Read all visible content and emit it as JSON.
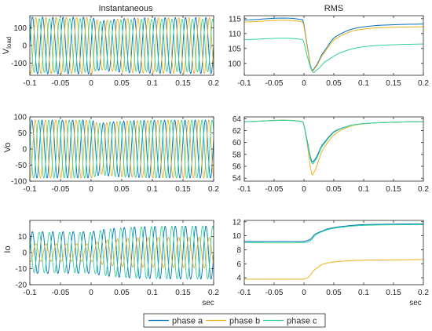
{
  "figure": {
    "legend_position": "bottom-center"
  },
  "legend": [
    {
      "name": "phase a",
      "color": "#0072BD"
    },
    {
      "name": "phase b",
      "color": "#EDB120"
    },
    {
      "name": "phase c",
      "color": "#2FD39A"
    }
  ],
  "chart_data": [
    {
      "id": "vload-inst",
      "type": "line",
      "title": "Instantaneous",
      "xlabel": "",
      "ylabel": "V_load",
      "ylabel_main": "V",
      "ylabel_sub": "load",
      "xlim": [
        -0.1,
        0.2
      ],
      "ylim": [
        -170,
        170
      ],
      "xticks": [
        -0.1,
        -0.05,
        0,
        0.05,
        0.1,
        0.15,
        0.2
      ],
      "xtick_labels": [
        "-0.1",
        "-0.05",
        "0",
        "0.05",
        "0.1",
        "0.15",
        "0.2"
      ],
      "yticks": [
        100,
        0,
        -100
      ],
      "ytick_labels": [
        "100",
        "0",
        "-100"
      ],
      "waveform": {
        "frequency_hz": 60,
        "disturbance_at": 0,
        "series": [
          {
            "name": "phase a",
            "phase_deg": 0,
            "amplitude_before": 162,
            "amplitude_min": 139,
            "amplitude_after": 160,
            "t_min": 0.015
          },
          {
            "name": "phase b",
            "phase_deg": -120,
            "amplitude_before": 160,
            "amplitude_min": 138,
            "amplitude_after": 159,
            "t_min": 0.015
          },
          {
            "name": "phase c",
            "phase_deg": 120,
            "amplitude_before": 153,
            "amplitude_min": 137,
            "amplitude_after": 150,
            "t_min": 0.015
          }
        ]
      }
    },
    {
      "id": "vload-rms",
      "type": "line",
      "title": "RMS",
      "xlabel": "",
      "ylabel": "",
      "xlim": [
        -0.1,
        0.2
      ],
      "ylim": [
        96,
        116
      ],
      "xticks": [
        -0.1,
        -0.05,
        0,
        0.05,
        0.1,
        0.15,
        0.2
      ],
      "xtick_labels": [
        "-0.1",
        "-0.05",
        "0",
        "0.05",
        "0.1",
        "0.15",
        "0.2"
      ],
      "yticks": [
        115,
        110,
        105,
        100
      ],
      "ytick_labels": [
        "115",
        "110",
        "105",
        "100"
      ],
      "series": [
        {
          "name": "phase a",
          "x": [
            -0.1,
            -0.002,
            0.005,
            0.012,
            0.018,
            0.03,
            0.05,
            0.08,
            0.12,
            0.2
          ],
          "y": [
            114.6,
            114.6,
            106.5,
            98.5,
            98.6,
            103.0,
            108.5,
            111.5,
            112.7,
            113.2
          ]
        },
        {
          "name": "phase b",
          "x": [
            -0.1,
            -0.002,
            0.005,
            0.012,
            0.018,
            0.03,
            0.05,
            0.08,
            0.12,
            0.2
          ],
          "y": [
            113.9,
            113.9,
            106.0,
            98.2,
            98.3,
            102.5,
            107.8,
            110.8,
            111.9,
            112.3
          ]
        },
        {
          "name": "phase c",
          "x": [
            -0.1,
            -0.002,
            0.006,
            0.014,
            0.02,
            0.035,
            0.06,
            0.09,
            0.13,
            0.2
          ],
          "y": [
            108.0,
            108.0,
            102.0,
            97.3,
            97.6,
            100.5,
            103.5,
            105.3,
            106.1,
            106.5
          ]
        }
      ]
    },
    {
      "id": "vo-inst",
      "type": "line",
      "title": "",
      "xlabel": "",
      "ylabel": "Vo",
      "xlim": [
        -0.1,
        0.2
      ],
      "ylim": [
        -100,
        100
      ],
      "xticks": [
        -0.1,
        -0.05,
        0,
        0.05,
        0.1,
        0.15,
        0.2
      ],
      "xtick_labels": [
        "-0.1",
        "-0.05",
        "0",
        "0.05",
        "0.1",
        "0.15",
        "0.2"
      ],
      "yticks": [
        100,
        50,
        0,
        -50,
        -100
      ],
      "ytick_labels": [
        "100",
        "50",
        "0",
        "-50",
        "-100"
      ],
      "waveform": {
        "frequency_hz": 60,
        "disturbance_at": 0,
        "series": [
          {
            "name": "phase a",
            "phase_deg": 20,
            "amplitude_before": 90,
            "amplitude_min": 80,
            "amplitude_after": 90,
            "t_min": 0.015
          },
          {
            "name": "phase b",
            "phase_deg": -100,
            "amplitude_before": 90,
            "amplitude_min": 78,
            "amplitude_after": 90,
            "t_min": 0.015
          },
          {
            "name": "phase c",
            "phase_deg": 140,
            "amplitude_before": 90,
            "amplitude_min": 80,
            "amplitude_after": 90,
            "t_min": 0.015
          }
        ]
      }
    },
    {
      "id": "vo-rms",
      "type": "line",
      "title": "",
      "xlabel": "",
      "ylabel": "",
      "xlim": [
        -0.1,
        0.2
      ],
      "ylim": [
        53.5,
        64.3
      ],
      "xticks": [
        -0.1,
        -0.05,
        0,
        0.05,
        0.1,
        0.15,
        0.2
      ],
      "xtick_labels": [
        "-0.1",
        "-0.05",
        "0",
        "0.05",
        "0.1",
        "0.15",
        "0.2"
      ],
      "yticks": [
        64,
        62,
        60,
        58,
        56,
        54
      ],
      "ytick_labels": [
        "64",
        "62",
        "60",
        "58",
        "56",
        "54"
      ],
      "series": [
        {
          "name": "phase a",
          "x": [
            -0.1,
            -0.002,
            0.005,
            0.012,
            0.017,
            0.03,
            0.05,
            0.08,
            0.12,
            0.2
          ],
          "y": [
            63.5,
            63.5,
            60.5,
            57.2,
            57.0,
            59.5,
            61.8,
            62.9,
            63.3,
            63.5
          ]
        },
        {
          "name": "phase b",
          "x": [
            -0.1,
            -0.002,
            0.005,
            0.012,
            0.016,
            0.03,
            0.05,
            0.08,
            0.12,
            0.2
          ],
          "y": [
            63.5,
            63.5,
            60.0,
            55.3,
            54.9,
            58.5,
            61.3,
            62.8,
            63.3,
            63.5
          ]
        },
        {
          "name": "phase c",
          "x": [
            -0.1,
            -0.002,
            0.005,
            0.012,
            0.017,
            0.03,
            0.05,
            0.08,
            0.12,
            0.2
          ],
          "y": [
            63.5,
            63.5,
            60.3,
            56.9,
            56.7,
            59.3,
            61.7,
            62.9,
            63.3,
            63.5
          ]
        }
      ]
    },
    {
      "id": "io-inst",
      "type": "line",
      "title": "",
      "xlabel": "sec",
      "ylabel": "Io",
      "xlim": [
        -0.1,
        0.2
      ],
      "ylim": [
        -20,
        20
      ],
      "xticks": [
        -0.1,
        -0.05,
        0,
        0.05,
        0.1,
        0.15,
        0.2
      ],
      "xtick_labels": [
        "-0.1",
        "-0.05",
        "0",
        "0.05",
        "0.1",
        "0.15",
        "0.2"
      ],
      "yticks": [
        10,
        0,
        -10,
        -20
      ],
      "ytick_labels": [
        "10",
        "0",
        "-10",
        "-20"
      ],
      "waveform": {
        "frequency_hz": 60,
        "disturbance_at": 0,
        "series": [
          {
            "name": "phase a",
            "phase_deg": 0,
            "amplitude_before": 13,
            "amplitude_after": 16.5,
            "tau": 0.04
          },
          {
            "name": "phase b",
            "phase_deg": -120,
            "amplitude_before": 5.5,
            "amplitude_after": 9.5,
            "tau": 0.03
          },
          {
            "name": "phase c",
            "phase_deg": 120,
            "amplitude_before": 12.5,
            "amplitude_after": 16.5,
            "tau": 0.04
          }
        ]
      }
    },
    {
      "id": "io-rms",
      "type": "line",
      "title": "",
      "xlabel": "sec",
      "ylabel": "",
      "xlim": [
        -0.1,
        0.2
      ],
      "ylim": [
        3,
        12.2
      ],
      "xticks": [
        -0.1,
        -0.05,
        0,
        0.05,
        0.1,
        0.15,
        0.2
      ],
      "xtick_labels": [
        "-0.1",
        "-0.05",
        "0",
        "0.05",
        "0.1",
        "0.15",
        "0.2"
      ],
      "yticks": [
        12,
        10,
        8,
        6,
        4
      ],
      "ytick_labels": [
        "12",
        "10",
        "8",
        "6",
        "4"
      ],
      "series": [
        {
          "name": "phase a",
          "x": [
            -0.1,
            -0.002,
            0.005,
            0.012,
            0.018,
            0.025,
            0.04,
            0.06,
            0.09,
            0.13,
            0.2
          ],
          "y": [
            9.2,
            9.2,
            9.3,
            9.6,
            10.2,
            10.5,
            11.0,
            11.3,
            11.55,
            11.65,
            11.7
          ]
        },
        {
          "name": "phase b",
          "x": [
            -0.1,
            -0.002,
            0.004,
            0.01,
            0.016,
            0.022,
            0.03,
            0.045,
            0.07,
            0.1,
            0.14,
            0.2
          ],
          "y": [
            3.8,
            3.8,
            3.9,
            4.3,
            5.0,
            5.4,
            5.9,
            6.2,
            6.4,
            6.5,
            6.55,
            6.6
          ]
        },
        {
          "name": "phase c",
          "x": [
            -0.1,
            -0.002,
            0.005,
            0.012,
            0.018,
            0.025,
            0.04,
            0.06,
            0.09,
            0.13,
            0.2
          ],
          "y": [
            9.0,
            9.0,
            9.1,
            9.4,
            10.0,
            10.4,
            10.9,
            11.2,
            11.45,
            11.55,
            11.6
          ]
        }
      ]
    }
  ]
}
